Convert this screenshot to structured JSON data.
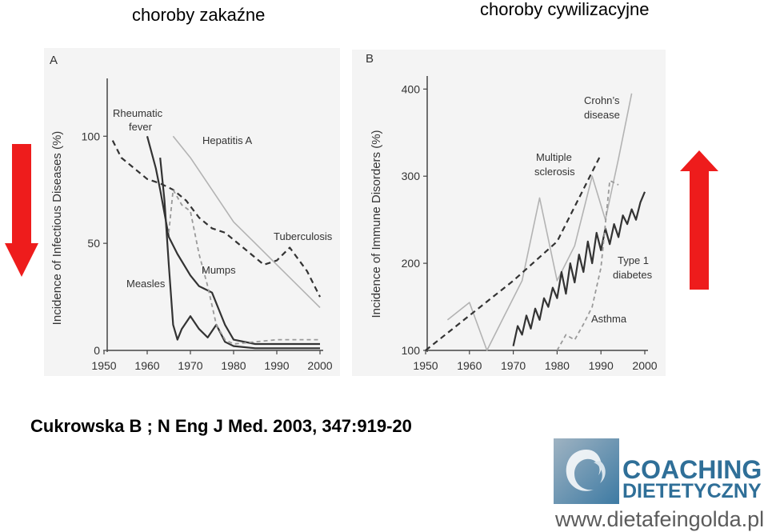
{
  "header": {
    "left_title": "choroby zakaźne",
    "right_title": "choroby cywilizacyjne"
  },
  "citation": "Cukrowska B ; N Eng J Med. 2003, 347:919-20",
  "logo": {
    "line1": "COACHING",
    "line2": "DIETETYCZNY",
    "url": "www.dietafeingolda.pl",
    "brand_color": "#2f6f98"
  },
  "arrows": {
    "left": {
      "direction": "down",
      "color": "#ee1c1c",
      "icon": "arrow-down-icon"
    },
    "right": {
      "direction": "up",
      "color": "#ee1c1c",
      "icon": "arrow-up-icon"
    }
  },
  "chart_data": [
    {
      "type": "line",
      "panel_label": "A",
      "ylabel": "Incidence of Infectious Diseases (%)",
      "xlabel": "",
      "x_ticks": [
        1950,
        1960,
        1970,
        1980,
        1990,
        2000
      ],
      "y_ticks": [
        0,
        50,
        100
      ],
      "xlim": [
        1950,
        2000
      ],
      "ylim": [
        0,
        127
      ],
      "series": [
        {
          "name": "Rheumatic fever",
          "style": "solid-dark",
          "x": [
            1960,
            1962,
            1963,
            1965,
            1967,
            1970,
            1972,
            1975,
            1978,
            1980,
            1985,
            1990,
            2000
          ],
          "y": [
            100,
            85,
            75,
            53,
            45,
            35,
            30,
            27,
            12,
            5,
            3,
            3,
            3
          ]
        },
        {
          "name": "Hepatitis A",
          "style": "solid-light",
          "x": [
            1966,
            1970,
            1975,
            1980,
            1985,
            1990,
            1995,
            2000
          ],
          "y": [
            100,
            90,
            75,
            60,
            50,
            40,
            30,
            20
          ]
        },
        {
          "name": "Tuberculosis",
          "style": "dashed-dark",
          "x": [
            1952,
            1954,
            1957,
            1960,
            1963,
            1966,
            1969,
            1972,
            1975,
            1978,
            1981,
            1984,
            1987,
            1990,
            1993,
            1997,
            2000
          ],
          "y": [
            98,
            90,
            85,
            80,
            78,
            75,
            70,
            62,
            57,
            55,
            50,
            45,
            40,
            42,
            48,
            37,
            25
          ]
        },
        {
          "name": "Measles",
          "style": "solid-dark",
          "x": [
            1963,
            1964,
            1965,
            1966,
            1967,
            1968,
            1970,
            1972,
            1974,
            1976,
            1978,
            1980,
            1985,
            1990,
            2000
          ],
          "y": [
            90,
            70,
            40,
            12,
            5,
            10,
            16,
            10,
            6,
            12,
            4,
            2,
            1,
            1,
            1
          ]
        },
        {
          "name": "Mumps",
          "style": "dashed-light",
          "x": [
            1965,
            1966,
            1968,
            1970,
            1972,
            1974,
            1976,
            1978,
            1980,
            1985,
            1990,
            2000
          ],
          "y": [
            55,
            75,
            68,
            65,
            45,
            30,
            12,
            5,
            3,
            4,
            5,
            5
          ]
        }
      ]
    },
    {
      "type": "line",
      "panel_label": "B",
      "ylabel": "Incidence of Immune Disorders (%)",
      "xlabel": "",
      "x_ticks": [
        1950,
        1960,
        1970,
        1980,
        1990,
        2000
      ],
      "y_ticks": [
        100,
        200,
        300,
        400
      ],
      "xlim": [
        1950,
        2000
      ],
      "ylim": [
        100,
        415
      ],
      "series": [
        {
          "name": "Crohn's disease",
          "style": "solid-light",
          "x": [
            1955,
            1960,
            1964,
            1968,
            1972,
            1976,
            1980,
            1984,
            1988,
            1991,
            1994,
            1997
          ],
          "y": [
            135,
            155,
            100,
            140,
            180,
            275,
            180,
            220,
            300,
            250,
            320,
            395
          ]
        },
        {
          "name": "Multiple sclerosis",
          "style": "dashed-dark",
          "x": [
            1950,
            1960,
            1970,
            1980,
            1990
          ],
          "y": [
            100,
            140,
            180,
            225,
            325
          ]
        },
        {
          "name": "Type 1 diabetes",
          "style": "solid-dark",
          "x": [
            1970,
            1971,
            1972,
            1973,
            1974,
            1975,
            1976,
            1977,
            1978,
            1979,
            1980,
            1981,
            1982,
            1983,
            1984,
            1985,
            1986,
            1987,
            1988,
            1989,
            1990,
            1991,
            1992,
            1993,
            1994,
            1995,
            1996,
            1997,
            1998,
            1999,
            2000
          ],
          "y": [
            105,
            128,
            118,
            140,
            125,
            148,
            135,
            160,
            150,
            172,
            160,
            190,
            165,
            200,
            178,
            210,
            190,
            225,
            200,
            235,
            215,
            240,
            222,
            245,
            230,
            255,
            245,
            262,
            250,
            270,
            282
          ]
        },
        {
          "name": "Asthma",
          "style": "dashed-light",
          "x": [
            1980,
            1982,
            1984,
            1986,
            1988,
            1990,
            1992,
            1994
          ],
          "y": [
            100,
            118,
            112,
            130,
            150,
            195,
            295,
            290
          ]
        }
      ]
    }
  ]
}
